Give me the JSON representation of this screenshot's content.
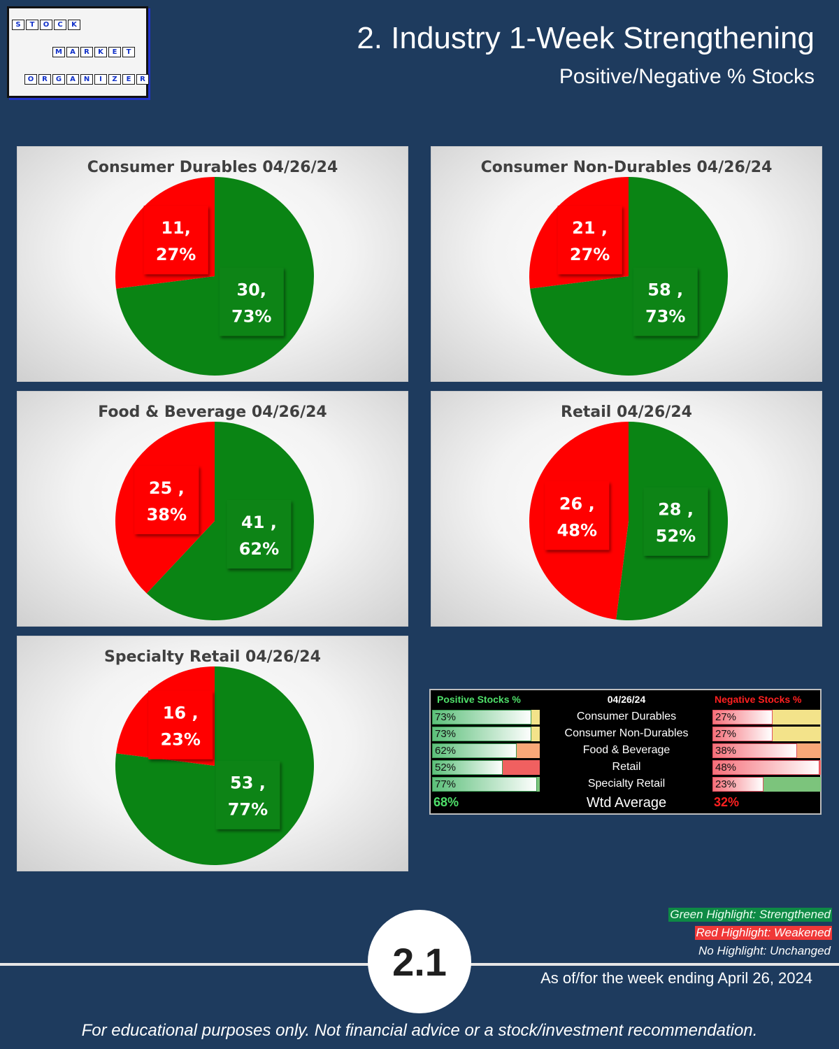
{
  "logo": {
    "words": [
      {
        "text": "STOCK",
        "letters": [
          "S",
          "T",
          "O",
          "C",
          "K"
        ]
      },
      {
        "text": "MARKET",
        "letters": [
          "M",
          "A",
          "R",
          "K",
          "E",
          "T"
        ]
      },
      {
        "text": "ORGANIZER",
        "letters": [
          "O",
          "R",
          "G",
          "A",
          "N",
          "I",
          "Z",
          "E",
          "R"
        ]
      }
    ]
  },
  "header": {
    "title": "2. Industry 1-Week Strengthening",
    "subtitle": "Positive/Negative % Stocks"
  },
  "colors": {
    "positive": "#0a8414",
    "negative": "#ff0000",
    "background": "#1e3b5e",
    "positive_header": "#4fe06a",
    "negative_header": "#ff2020"
  },
  "chart_data": [
    {
      "type": "pie",
      "title": "Consumer Durables 04/26/24",
      "slices": [
        {
          "label": "Positive",
          "count": 30,
          "percent": 73,
          "text1": "30,",
          "text2": "73%"
        },
        {
          "label": "Negative",
          "count": 11,
          "percent": 27,
          "text1": "11,",
          "text2": "27%"
        }
      ]
    },
    {
      "type": "pie",
      "title": "Consumer Non-Durables 04/26/24",
      "slices": [
        {
          "label": "Positive",
          "count": 58,
          "percent": 73,
          "text1": "58 ,",
          "text2": "73%"
        },
        {
          "label": "Negative",
          "count": 21,
          "percent": 27,
          "text1": "21 ,",
          "text2": "27%"
        }
      ]
    },
    {
      "type": "pie",
      "title": "Food & Beverage 04/26/24",
      "slices": [
        {
          "label": "Positive",
          "count": 41,
          "percent": 62,
          "text1": "41 ,",
          "text2": "62%"
        },
        {
          "label": "Negative",
          "count": 25,
          "percent": 38,
          "text1": "25 ,",
          "text2": "38%"
        }
      ]
    },
    {
      "type": "pie",
      "title": "Retail 04/26/24",
      "slices": [
        {
          "label": "Positive",
          "count": 28,
          "percent": 52,
          "text1": "28 ,",
          "text2": "52%"
        },
        {
          "label": "Negative",
          "count": 26,
          "percent": 48,
          "text1": "26 ,",
          "text2": "48%"
        }
      ]
    },
    {
      "type": "pie",
      "title": "Specialty Retail 04/26/24",
      "slices": [
        {
          "label": "Positive",
          "count": 53,
          "percent": 77,
          "text1": "53 ,",
          "text2": "77%"
        },
        {
          "label": "Negative",
          "count": 16,
          "percent": 23,
          "text1": "16 ,",
          "text2": "23%"
        }
      ]
    }
  ],
  "summary_table": {
    "positive_header": "Positive Stocks %",
    "date_header": "04/26/24",
    "negative_header": "Negative Stocks %",
    "rows": [
      {
        "name": "Consumer Durables",
        "positive": "73%",
        "negative": "27%",
        "pos_highlight": "#f3e38a",
        "neg_highlight": "#f3e38a"
      },
      {
        "name": "Consumer Non-Durables",
        "positive": "73%",
        "negative": "27%",
        "pos_highlight": "#f3e38a",
        "neg_highlight": "#f3e38a"
      },
      {
        "name": "Food & Beverage",
        "positive": "62%",
        "negative": "38%",
        "pos_highlight": "#f8a878",
        "neg_highlight": "#f8a878"
      },
      {
        "name": "Retail",
        "positive": "52%",
        "negative": "48%",
        "pos_highlight": "#f06060",
        "neg_highlight": "#f06060"
      },
      {
        "name": "Specialty Retail",
        "positive": "77%",
        "negative": "23%",
        "pos_highlight": "#7cc47c",
        "neg_highlight": "#7cc47c"
      }
    ],
    "avg_label": "Wtd Average",
    "avg_positive": "68%",
    "avg_negative": "32%"
  },
  "legend_notes": {
    "green": "Green Highlight: Strengthened",
    "red": "Red Highlight: Weakened",
    "none": "No Highlight: Unchanged",
    "green_color": "#0e8a45",
    "red_color": "#f03838"
  },
  "footer": {
    "badge": "2.1",
    "as_of": "As of/for the week ending April 26, 2024",
    "disclaimer": "For educational purposes only. Not financial advice or a stock/investment recommendation."
  }
}
